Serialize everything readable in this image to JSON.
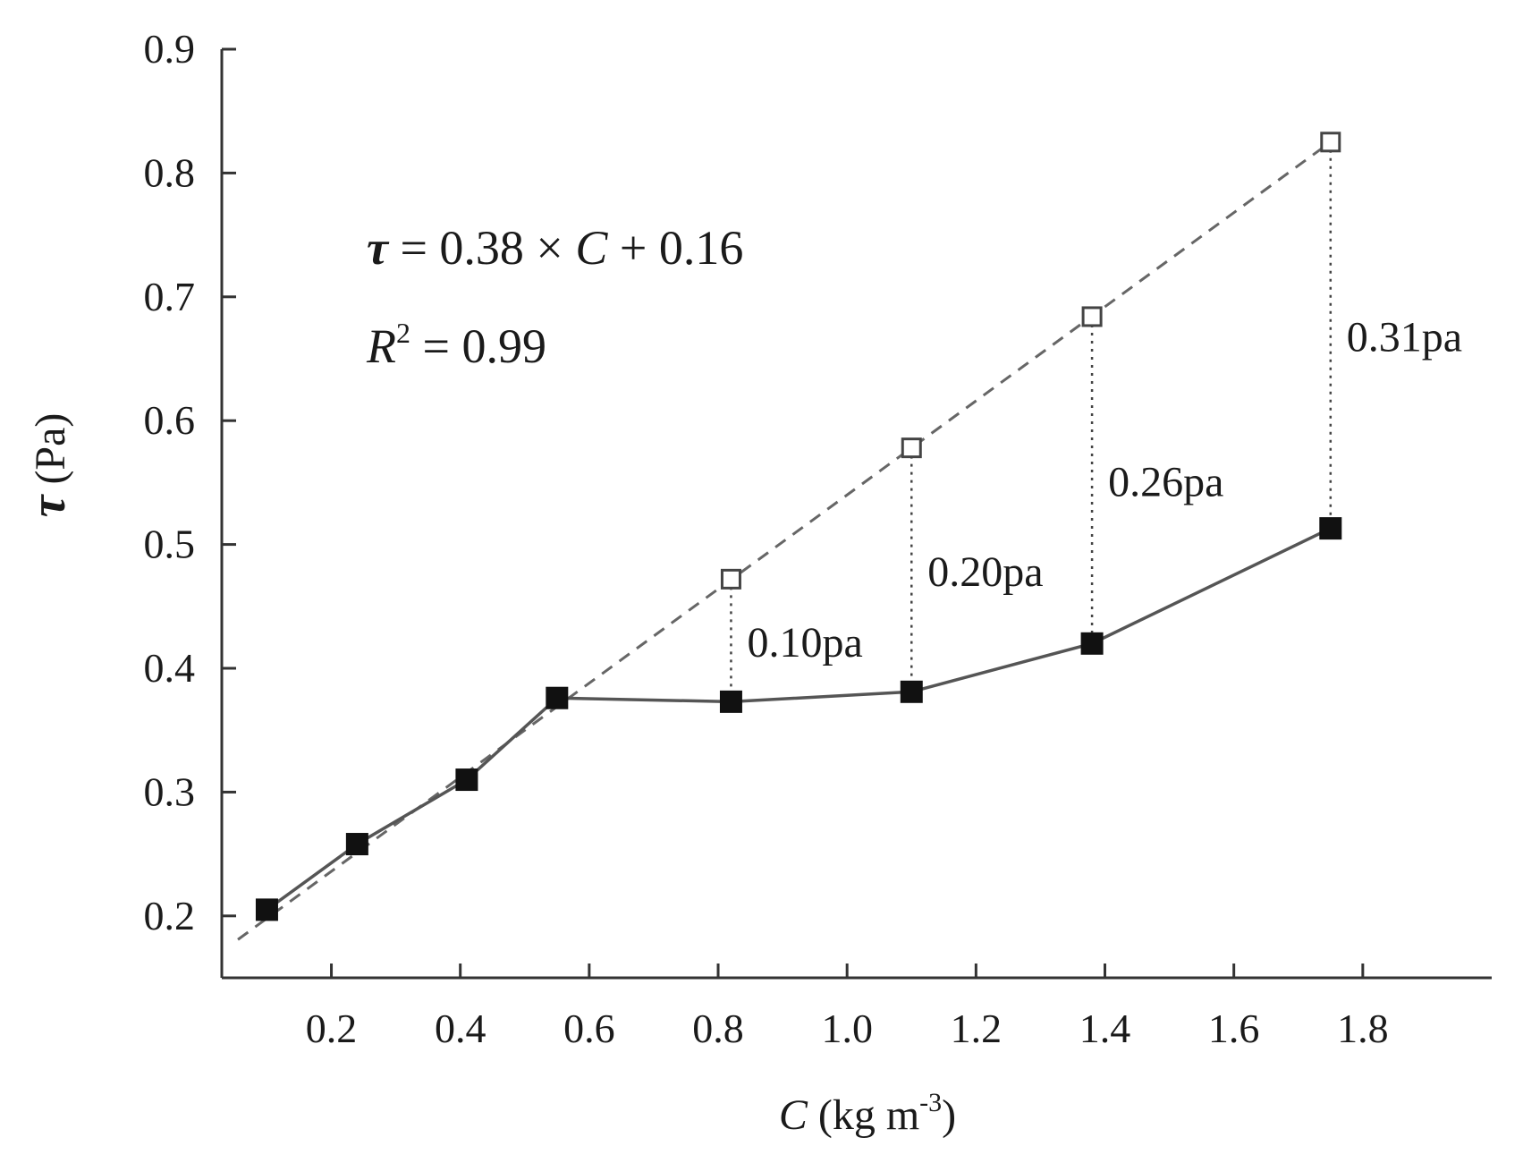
{
  "chart_data": {
    "type": "line",
    "xlabel_var": "C",
    "xlabel_unit": " (kg m",
    "xlabel_unit_exp": "-3",
    "xlabel_unit_close": ")",
    "ylabel_var": "τ",
    "ylabel_unit": " (Pa)",
    "xlim": [
      0.03,
      2.0
    ],
    "ylim": [
      0.15,
      0.9
    ],
    "xticks": [
      0.2,
      0.4,
      0.6,
      0.8,
      1.0,
      1.2,
      1.4,
      1.6,
      1.8
    ],
    "xtick_labels": [
      "0.2",
      "0.4",
      "0.6",
      "0.8",
      "1.0",
      "1.2",
      "1.4",
      "1.6",
      "1.8"
    ],
    "yticks": [
      0.2,
      0.3,
      0.4,
      0.5,
      0.6,
      0.7,
      0.8,
      0.9
    ],
    "ytick_labels": [
      "0.2",
      "0.3",
      "0.4",
      "0.5",
      "0.6",
      "0.7",
      "0.8",
      "0.9"
    ],
    "series": [
      {
        "style": "solid",
        "marker": "filled-square",
        "x": [
          0.1,
          0.24,
          0.41,
          0.55,
          0.82,
          1.1,
          1.38,
          1.75
        ],
        "y": [
          0.205,
          0.258,
          0.31,
          0.376,
          0.373,
          0.381,
          0.42,
          0.513
        ]
      },
      {
        "style": "dashed",
        "marker": "open-square",
        "x": [
          0.82,
          1.1,
          1.38,
          1.75
        ],
        "y": [
          0.472,
          0.578,
          0.684,
          0.825
        ]
      }
    ],
    "fit_line": {
      "slope": 0.38,
      "intercept": 0.16,
      "x_range": [
        0.055,
        1.75
      ]
    },
    "equation": {
      "tau": "τ",
      "rhs_a": " = 0.38 × ",
      "rhs_c": "C",
      "rhs_b": " + 0.16",
      "r": "R",
      "r_exp": "2",
      "r_rest": " = 0.99"
    },
    "gap_labels": [
      "0.10pa",
      "0.20pa",
      "0.26pa",
      "0.31pa"
    ]
  }
}
